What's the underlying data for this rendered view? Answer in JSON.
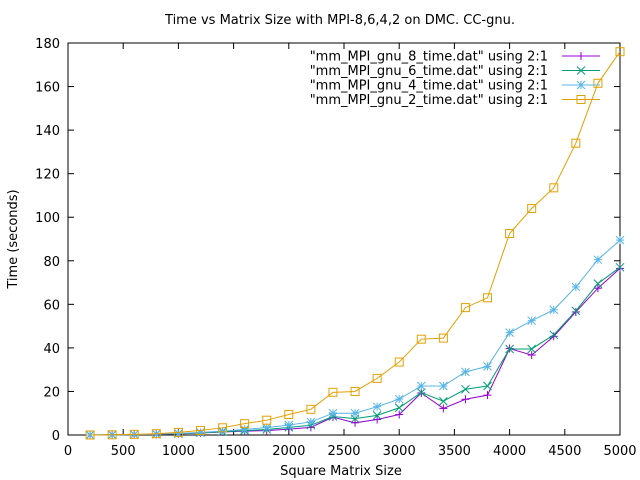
{
  "chart_data": {
    "type": "line",
    "title": "Time vs Matrix Size with MPI-8,6,4,2 on DMC. CC-gnu.",
    "xlabel": "Square Matrix Size",
    "ylabel": "Time (seconds)",
    "xlim": [
      0,
      5000
    ],
    "ylim": [
      0,
      180
    ],
    "xticks": [
      0,
      500,
      1000,
      1500,
      2000,
      2500,
      3000,
      3500,
      4000,
      4500,
      5000
    ],
    "yticks": [
      0,
      20,
      40,
      60,
      80,
      100,
      120,
      140,
      160,
      180
    ],
    "grid": false,
    "legend_position": "top-right",
    "x": [
      200,
      400,
      600,
      800,
      1000,
      1200,
      1400,
      1600,
      1800,
      2000,
      2200,
      2400,
      2600,
      2800,
      3000,
      3200,
      3400,
      3600,
      3800,
      4000,
      4200,
      4400,
      4600,
      4800,
      5000
    ],
    "series": [
      {
        "name": "\"mm_MPI_gnu_8_time.dat\" using 2:1",
        "color": "#9400d3",
        "marker": "plus",
        "values": [
          0.0,
          0.1,
          0.2,
          0.3,
          0.5,
          0.9,
          1.4,
          1.8,
          2.0,
          2.7,
          3.5,
          8.2,
          5.6,
          7.1,
          9.4,
          19.3,
          12.2,
          16.4,
          18.3,
          39.7,
          36.7,
          45.3,
          56.5,
          67.4,
          76.5
        ]
      },
      {
        "name": "\"mm_MPI_gnu_6_time.dat\" using 2:1",
        "color": "#009e73",
        "marker": "x",
        "values": [
          0.0,
          0.1,
          0.2,
          0.4,
          0.6,
          1.0,
          1.5,
          2.0,
          2.5,
          3.5,
          4.5,
          8.5,
          7.5,
          9.0,
          12.5,
          19.5,
          15.5,
          21.0,
          22.5,
          39.5,
          39.5,
          46.0,
          57.0,
          69.5,
          77.0
        ]
      },
      {
        "name": "\"mm_MPI_gnu_4_time.dat\" using 2:1",
        "color": "#56b4e9",
        "marker": "star",
        "values": [
          0.0,
          0.1,
          0.2,
          0.4,
          0.7,
          1.2,
          1.8,
          2.6,
          3.4,
          4.6,
          6.0,
          10.0,
          10.0,
          13.0,
          16.5,
          22.5,
          22.5,
          29.0,
          31.5,
          47.0,
          52.5,
          57.5,
          68.0,
          80.5,
          89.5
        ]
      },
      {
        "name": "\"mm_MPI_gnu_2_time.dat\" using 2:1",
        "color": "#e69f00",
        "marker": "square",
        "values": [
          0.0,
          0.1,
          0.3,
          0.6,
          1.2,
          2.1,
          3.3,
          5.2,
          6.8,
          9.4,
          11.8,
          19.6,
          20.0,
          26.0,
          33.5,
          44.0,
          44.5,
          58.5,
          63.0,
          92.5,
          104.0,
          113.5,
          134.0,
          161.5,
          176.0
        ]
      }
    ]
  }
}
